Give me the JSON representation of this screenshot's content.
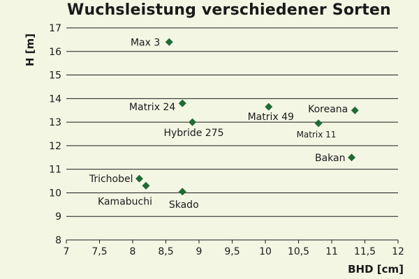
{
  "chart_data": {
    "type": "scatter",
    "title": "Wuchsleistung verschiedener Sorten",
    "xlabel": "BHD [cm]",
    "ylabel": "H [m]",
    "xlim": [
      7,
      12
    ],
    "ylim": [
      8,
      17
    ],
    "x_ticks": [
      "7",
      "7,5",
      "8",
      "8,5",
      "9",
      "9,5",
      "10",
      "10,5",
      "11",
      "11,5",
      "12"
    ],
    "y_ticks": [
      "8",
      "9",
      "10",
      "11",
      "12",
      "13",
      "14",
      "15",
      "16",
      "17"
    ],
    "grid": "horizontal",
    "marker_color": "#1e6b35",
    "points": [
      {
        "label": "Max 3",
        "x": 8.55,
        "y": 16.4
      },
      {
        "label": "Matrix 24",
        "x": 8.75,
        "y": 13.8
      },
      {
        "label": "Hybride 275",
        "x": 8.9,
        "y": 13.0
      },
      {
        "label": "Matrix 49",
        "x": 10.05,
        "y": 13.65
      },
      {
        "label": "Koreana",
        "x": 11.35,
        "y": 13.5
      },
      {
        "label": "Matrix 11",
        "x": 10.8,
        "y": 12.95
      },
      {
        "label": "Bakan",
        "x": 11.3,
        "y": 11.5
      },
      {
        "label": "Trichobel",
        "x": 8.1,
        "y": 10.6
      },
      {
        "label": "Kamabuchi",
        "x": 8.2,
        "y": 10.3
      },
      {
        "label": "Skado",
        "x": 8.75,
        "y": 10.05
      }
    ]
  }
}
